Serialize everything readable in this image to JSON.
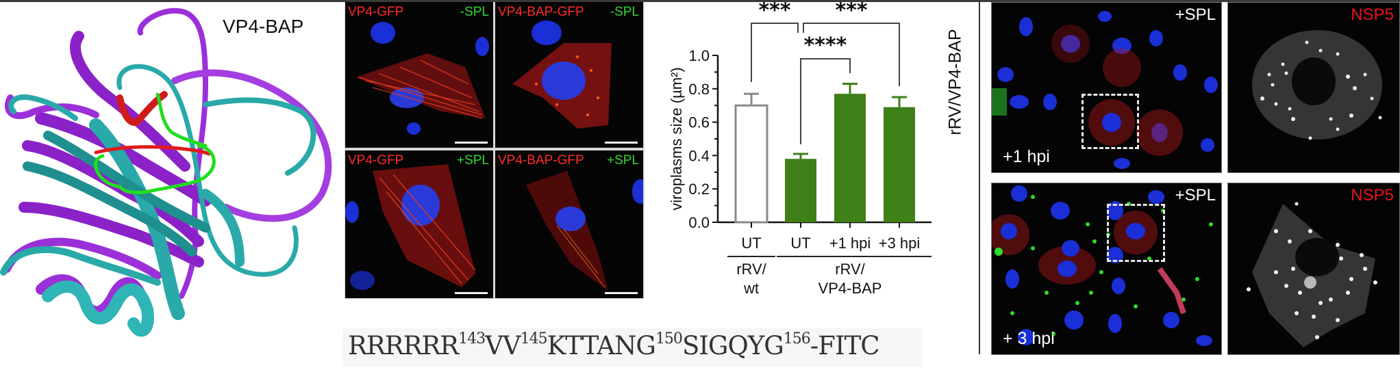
{
  "figure": {
    "protein_structure": {
      "label": "VP4-BAP",
      "colors": {
        "model_a": "#9b30d9",
        "model_b": "#2aa9a9",
        "highlight_red": "#d11a1a",
        "highlight_green": "#22dd22"
      }
    },
    "micrographs": {
      "panels": [
        {
          "left_label": "VP4-GFP",
          "right_label": "-SPL"
        },
        {
          "left_label": "VP4-BAP-GFP",
          "right_label": "-SPL"
        },
        {
          "left_label": "VP4-GFP",
          "right_label": "+SPL"
        },
        {
          "left_label": "VP4-BAP-GFP",
          "right_label": "+SPL"
        }
      ],
      "label_colors": {
        "protein": "#ff2a2a",
        "treatment": "#33d633"
      }
    },
    "peptide": {
      "segments": [
        {
          "text": "RRRRRR",
          "sup": "143"
        },
        {
          "text": "VV",
          "sup": "145"
        },
        {
          "text": "KTTANG",
          "sup": "150"
        },
        {
          "text": "SIGQYG",
          "sup": "156"
        },
        {
          "text": "-FITC",
          "sup": ""
        }
      ]
    },
    "infection_panels": {
      "row_label": "rRV/VP4-BAP",
      "rows": [
        {
          "merge_top_label": "+SPL",
          "merge_bottom_label": "+1 hpi",
          "zoom_label": "NSP5"
        },
        {
          "merge_top_label": "+SPL",
          "merge_bottom_label": "+ 3 hpi",
          "zoom_label": "NSP5"
        }
      ]
    }
  },
  "chart_data": {
    "type": "bar",
    "title": "",
    "ylabel": "viroplasms size (µm²)",
    "xlabel": "",
    "ylim": [
      0,
      1.0
    ],
    "yticks": [
      "0.0",
      "0.2",
      "0.4",
      "0.6",
      "0.8",
      "1.0"
    ],
    "categories": [
      "UT",
      "UT",
      "+1 hpi",
      "+3 hpi"
    ],
    "groups": [
      {
        "label_line1": "rRV/",
        "label_line2": "wt",
        "categories": [
          0
        ]
      },
      {
        "label_line1": "rRV/",
        "label_line2": "VP4-BAP",
        "categories": [
          1,
          2,
          3
        ]
      }
    ],
    "values": [
      0.7,
      0.38,
      0.77,
      0.69
    ],
    "errors": [
      0.07,
      0.03,
      0.06,
      0.06
    ],
    "bar_styles": [
      "open",
      "filled",
      "filled",
      "filled"
    ],
    "colors": {
      "filled": "#3f7f17",
      "open_edge": "#8a8a8a"
    },
    "significance": [
      {
        "from": 0,
        "to": 1,
        "label": "***"
      },
      {
        "from": 1,
        "to": 3,
        "label": "***"
      },
      {
        "from": 1,
        "to": 2,
        "label": "****"
      }
    ],
    "grid": false,
    "legend": null
  }
}
